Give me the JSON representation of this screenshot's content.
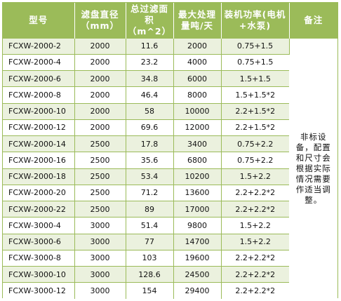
{
  "table": {
    "headers": [
      "型号",
      "滤盘直径（mm）",
      "总过滤面积（m^2）",
      "最大处理量吨/天",
      "装机功率(电机+水泵)",
      "备注"
    ],
    "rows": [
      [
        "FCXW-2000-2",
        "2000",
        "11.6",
        "2000",
        "0.75+1.5"
      ],
      [
        "FCXW-2000-4",
        "2000",
        "23.2",
        "4000",
        "0.75+1.5"
      ],
      [
        "FCXW-2000-6",
        "2000",
        "34.8",
        "6000",
        "1.5+1.5"
      ],
      [
        "FCXW-2000-8",
        "2000",
        "46.4",
        "8000",
        "1.5+1.5*2"
      ],
      [
        "FCXW-2000-10",
        "2000",
        "58",
        "10000",
        "2.2+1.5*2"
      ],
      [
        "FCXW-2000-12",
        "2000",
        "69.6",
        "12000",
        "2.2+1.5*2"
      ],
      [
        "FCXW-2000-14",
        "2500",
        "17.8",
        "3400",
        "0.75+2.2"
      ],
      [
        "FCXW-2000-16",
        "2500",
        "35.6",
        "6800",
        "0.75+2.2"
      ],
      [
        "FCXW-2000-18",
        "2500",
        "53.4",
        "10200",
        "1.5+2.2"
      ],
      [
        "FCXW-2000-20",
        "2500",
        "71.2",
        "13600",
        "2.2+2.2*2"
      ],
      [
        "FCXW-2000-22",
        "2500",
        "89",
        "17000",
        "2.2+2.2*2"
      ],
      [
        "FCXW-3000-4",
        "3000",
        "51.4",
        "9800",
        "1.5+2.2"
      ],
      [
        "FCXW-3000-6",
        "3000",
        "77",
        "14700",
        "1.5+2.2"
      ],
      [
        "FCXW-3000-8",
        "3000",
        "103",
        "19600",
        "2.2+2.2*2"
      ],
      [
        "FCXW-3000-10",
        "3000",
        "128.6",
        "24500",
        "2.2+2.2*2"
      ],
      [
        "FCXW-3000-12",
        "3000",
        "154",
        "29400",
        "2.2+2.2*2"
      ]
    ],
    "note": "非标设备，配置和尺寸会根据实际情况需要作适当调整。"
  },
  "colors": {
    "header_bg": "#9bbb59",
    "header_text": "#ffffff",
    "stripe_bg": "#ebf1de",
    "border": "#9bbb59"
  }
}
